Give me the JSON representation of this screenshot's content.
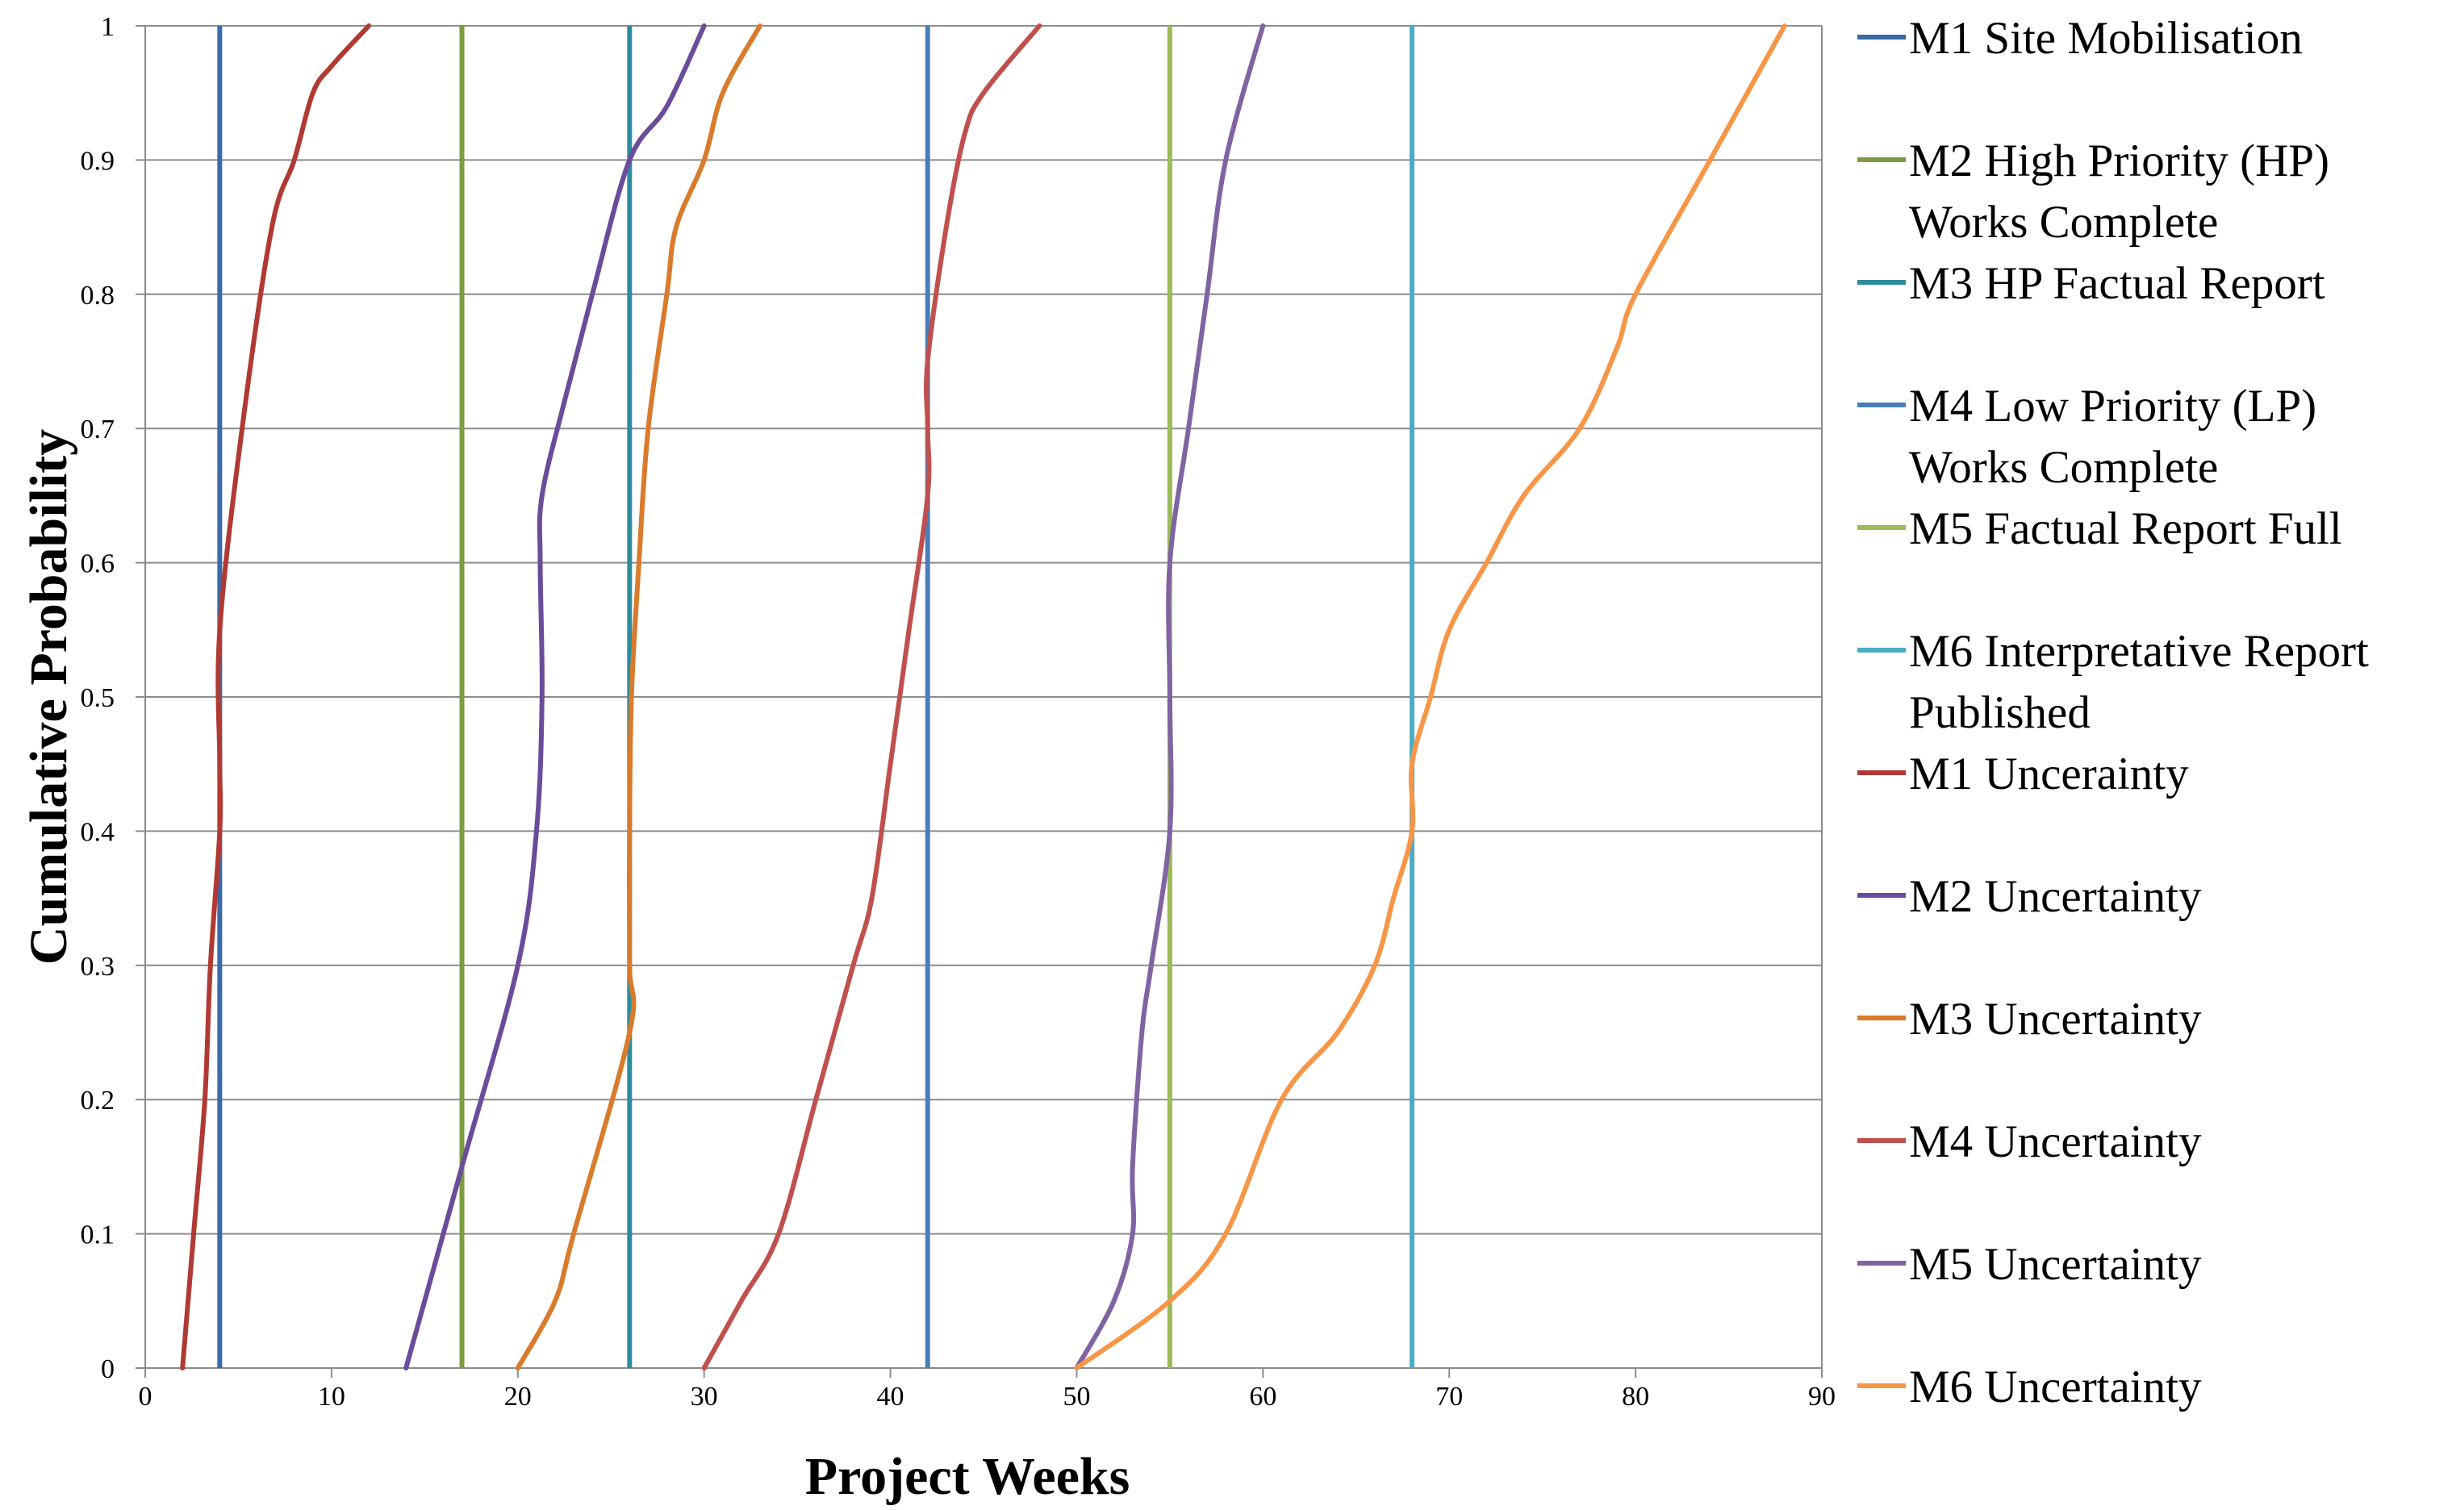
{
  "chart_data": {
    "type": "line",
    "title": "",
    "xlabel": "Project Weeks",
    "ylabel": "Cumulative Probability",
    "xlim": [
      0,
      90
    ],
    "ylim": [
      0,
      1
    ],
    "x_ticks": [
      0,
      10,
      20,
      30,
      40,
      50,
      60,
      70,
      80,
      90
    ],
    "y_ticks": [
      "0",
      "0.1",
      "0.2",
      "0.3",
      "0.4",
      "0.5",
      "0.6",
      "0.7",
      "0.8",
      "0.9",
      "1"
    ],
    "grid": "horizontal",
    "legend_position": "right",
    "series": [
      {
        "name": "M1 Site Mobilisation",
        "legend_lines": [
          "M1 Site Mobilisation"
        ],
        "color": "#3C6AA6",
        "kind": "vline",
        "x": 4
      },
      {
        "name": "M2 High Priority (HP) Works Complete",
        "legend_lines": [
          "M2 High Priority (HP)",
          "Works Complete"
        ],
        "color": "#7C9D3F",
        "kind": "vline",
        "x": 17
      },
      {
        "name": "M3 HP Factual Report",
        "legend_lines": [
          "M3 HP Factual Report"
        ],
        "color": "#2C8C9E",
        "kind": "vline",
        "x": 26
      },
      {
        "name": "M4 Low Priority (LP) Works Complete",
        "legend_lines": [
          "M4 Low Priority (LP)",
          "Works Complete"
        ],
        "color": "#4A7EBB",
        "kind": "vline",
        "x": 42
      },
      {
        "name": "M5 Factual Report Full",
        "legend_lines": [
          "M5 Factual Report Full"
        ],
        "color": "#9BBB59",
        "kind": "vline",
        "x": 55
      },
      {
        "name": "M6 Interpretative Report Published",
        "legend_lines": [
          "M6 Interpretative Report",
          "Published"
        ],
        "color": "#4BACC6",
        "kind": "vline",
        "x": 68
      },
      {
        "name": "M1 Uncerainty",
        "legend_lines": [
          "M1 Uncerainty"
        ],
        "color": "#B03A33",
        "kind": "curve",
        "points": [
          [
            2,
            0
          ],
          [
            2.6,
            0.1
          ],
          [
            3.2,
            0.2
          ],
          [
            3.5,
            0.3
          ],
          [
            4,
            0.4
          ],
          [
            4,
            0.45
          ],
          [
            4,
            0.55
          ],
          [
            5.2,
            0.7
          ],
          [
            6.8,
            0.85
          ],
          [
            8,
            0.9
          ],
          [
            9,
            0.95
          ],
          [
            10,
            0.97
          ],
          [
            12,
            1
          ]
        ]
      },
      {
        "name": "M2 Uncertainty",
        "legend_lines": [
          "M2 Uncertainty"
        ],
        "color": "#6B4C9A",
        "kind": "curve",
        "points": [
          [
            14,
            0
          ],
          [
            17,
            0.15
          ],
          [
            20,
            0.3
          ],
          [
            21,
            0.4
          ],
          [
            21.3,
            0.5
          ],
          [
            21.2,
            0.6
          ],
          [
            21.3,
            0.65
          ],
          [
            22.5,
            0.72
          ],
          [
            24,
            0.8
          ],
          [
            26,
            0.9
          ],
          [
            28,
            0.94
          ],
          [
            30,
            1
          ]
        ]
      },
      {
        "name": "M3 Uncertainty",
        "legend_lines": [
          "M3 Uncertainty"
        ],
        "color": "#D97B2B",
        "kind": "curve",
        "points": [
          [
            20,
            0
          ],
          [
            22,
            0.05
          ],
          [
            23,
            0.1
          ],
          [
            26,
            0.25
          ],
          [
            26,
            0.3
          ],
          [
            26,
            0.4
          ],
          [
            26.1,
            0.5
          ],
          [
            26.5,
            0.6
          ],
          [
            27,
            0.7
          ],
          [
            28,
            0.8
          ],
          [
            28.5,
            0.85
          ],
          [
            30,
            0.9
          ],
          [
            31,
            0.95
          ],
          [
            33,
            1
          ]
        ]
      },
      {
        "name": "M4 Uncertainty",
        "legend_lines": [
          "M4 Uncertainty"
        ],
        "color": "#C0504D",
        "kind": "curve",
        "points": [
          [
            30,
            0
          ],
          [
            32,
            0.05
          ],
          [
            34,
            0.1
          ],
          [
            36,
            0.2
          ],
          [
            38,
            0.3
          ],
          [
            39,
            0.35
          ],
          [
            40,
            0.45
          ],
          [
            41,
            0.55
          ],
          [
            42,
            0.65
          ],
          [
            42,
            0.7
          ],
          [
            42,
            0.75
          ],
          [
            43,
            0.85
          ],
          [
            44,
            0.92
          ],
          [
            45,
            0.95
          ],
          [
            48,
            1
          ]
        ]
      },
      {
        "name": "M5 Uncertainty",
        "legend_lines": [
          "M5 Uncertainty"
        ],
        "color": "#8064A2",
        "kind": "curve",
        "points": [
          [
            50,
            0
          ],
          [
            52,
            0.05
          ],
          [
            53,
            0.1
          ],
          [
            53,
            0.15
          ],
          [
            53.5,
            0.25
          ],
          [
            54,
            0.3
          ],
          [
            55,
            0.4
          ],
          [
            55,
            0.5
          ],
          [
            55,
            0.6
          ],
          [
            56,
            0.7
          ],
          [
            57,
            0.8
          ],
          [
            58,
            0.9
          ],
          [
            60,
            1
          ]
        ]
      },
      {
        "name": "M6 Uncertainty",
        "legend_lines": [
          "M6 Uncertainty"
        ],
        "color": "#F79646",
        "kind": "curve",
        "points": [
          [
            50,
            0
          ],
          [
            55,
            0.05
          ],
          [
            58,
            0.1
          ],
          [
            61,
            0.2
          ],
          [
            64,
            0.25
          ],
          [
            66,
            0.3
          ],
          [
            67,
            0.35
          ],
          [
            68,
            0.4
          ],
          [
            68,
            0.45
          ],
          [
            69,
            0.5
          ],
          [
            70,
            0.55
          ],
          [
            72,
            0.6
          ],
          [
            74,
            0.65
          ],
          [
            77,
            0.7
          ],
          [
            79,
            0.76
          ],
          [
            80,
            0.8
          ],
          [
            84,
            0.9
          ],
          [
            88,
            1
          ]
        ]
      }
    ]
  }
}
